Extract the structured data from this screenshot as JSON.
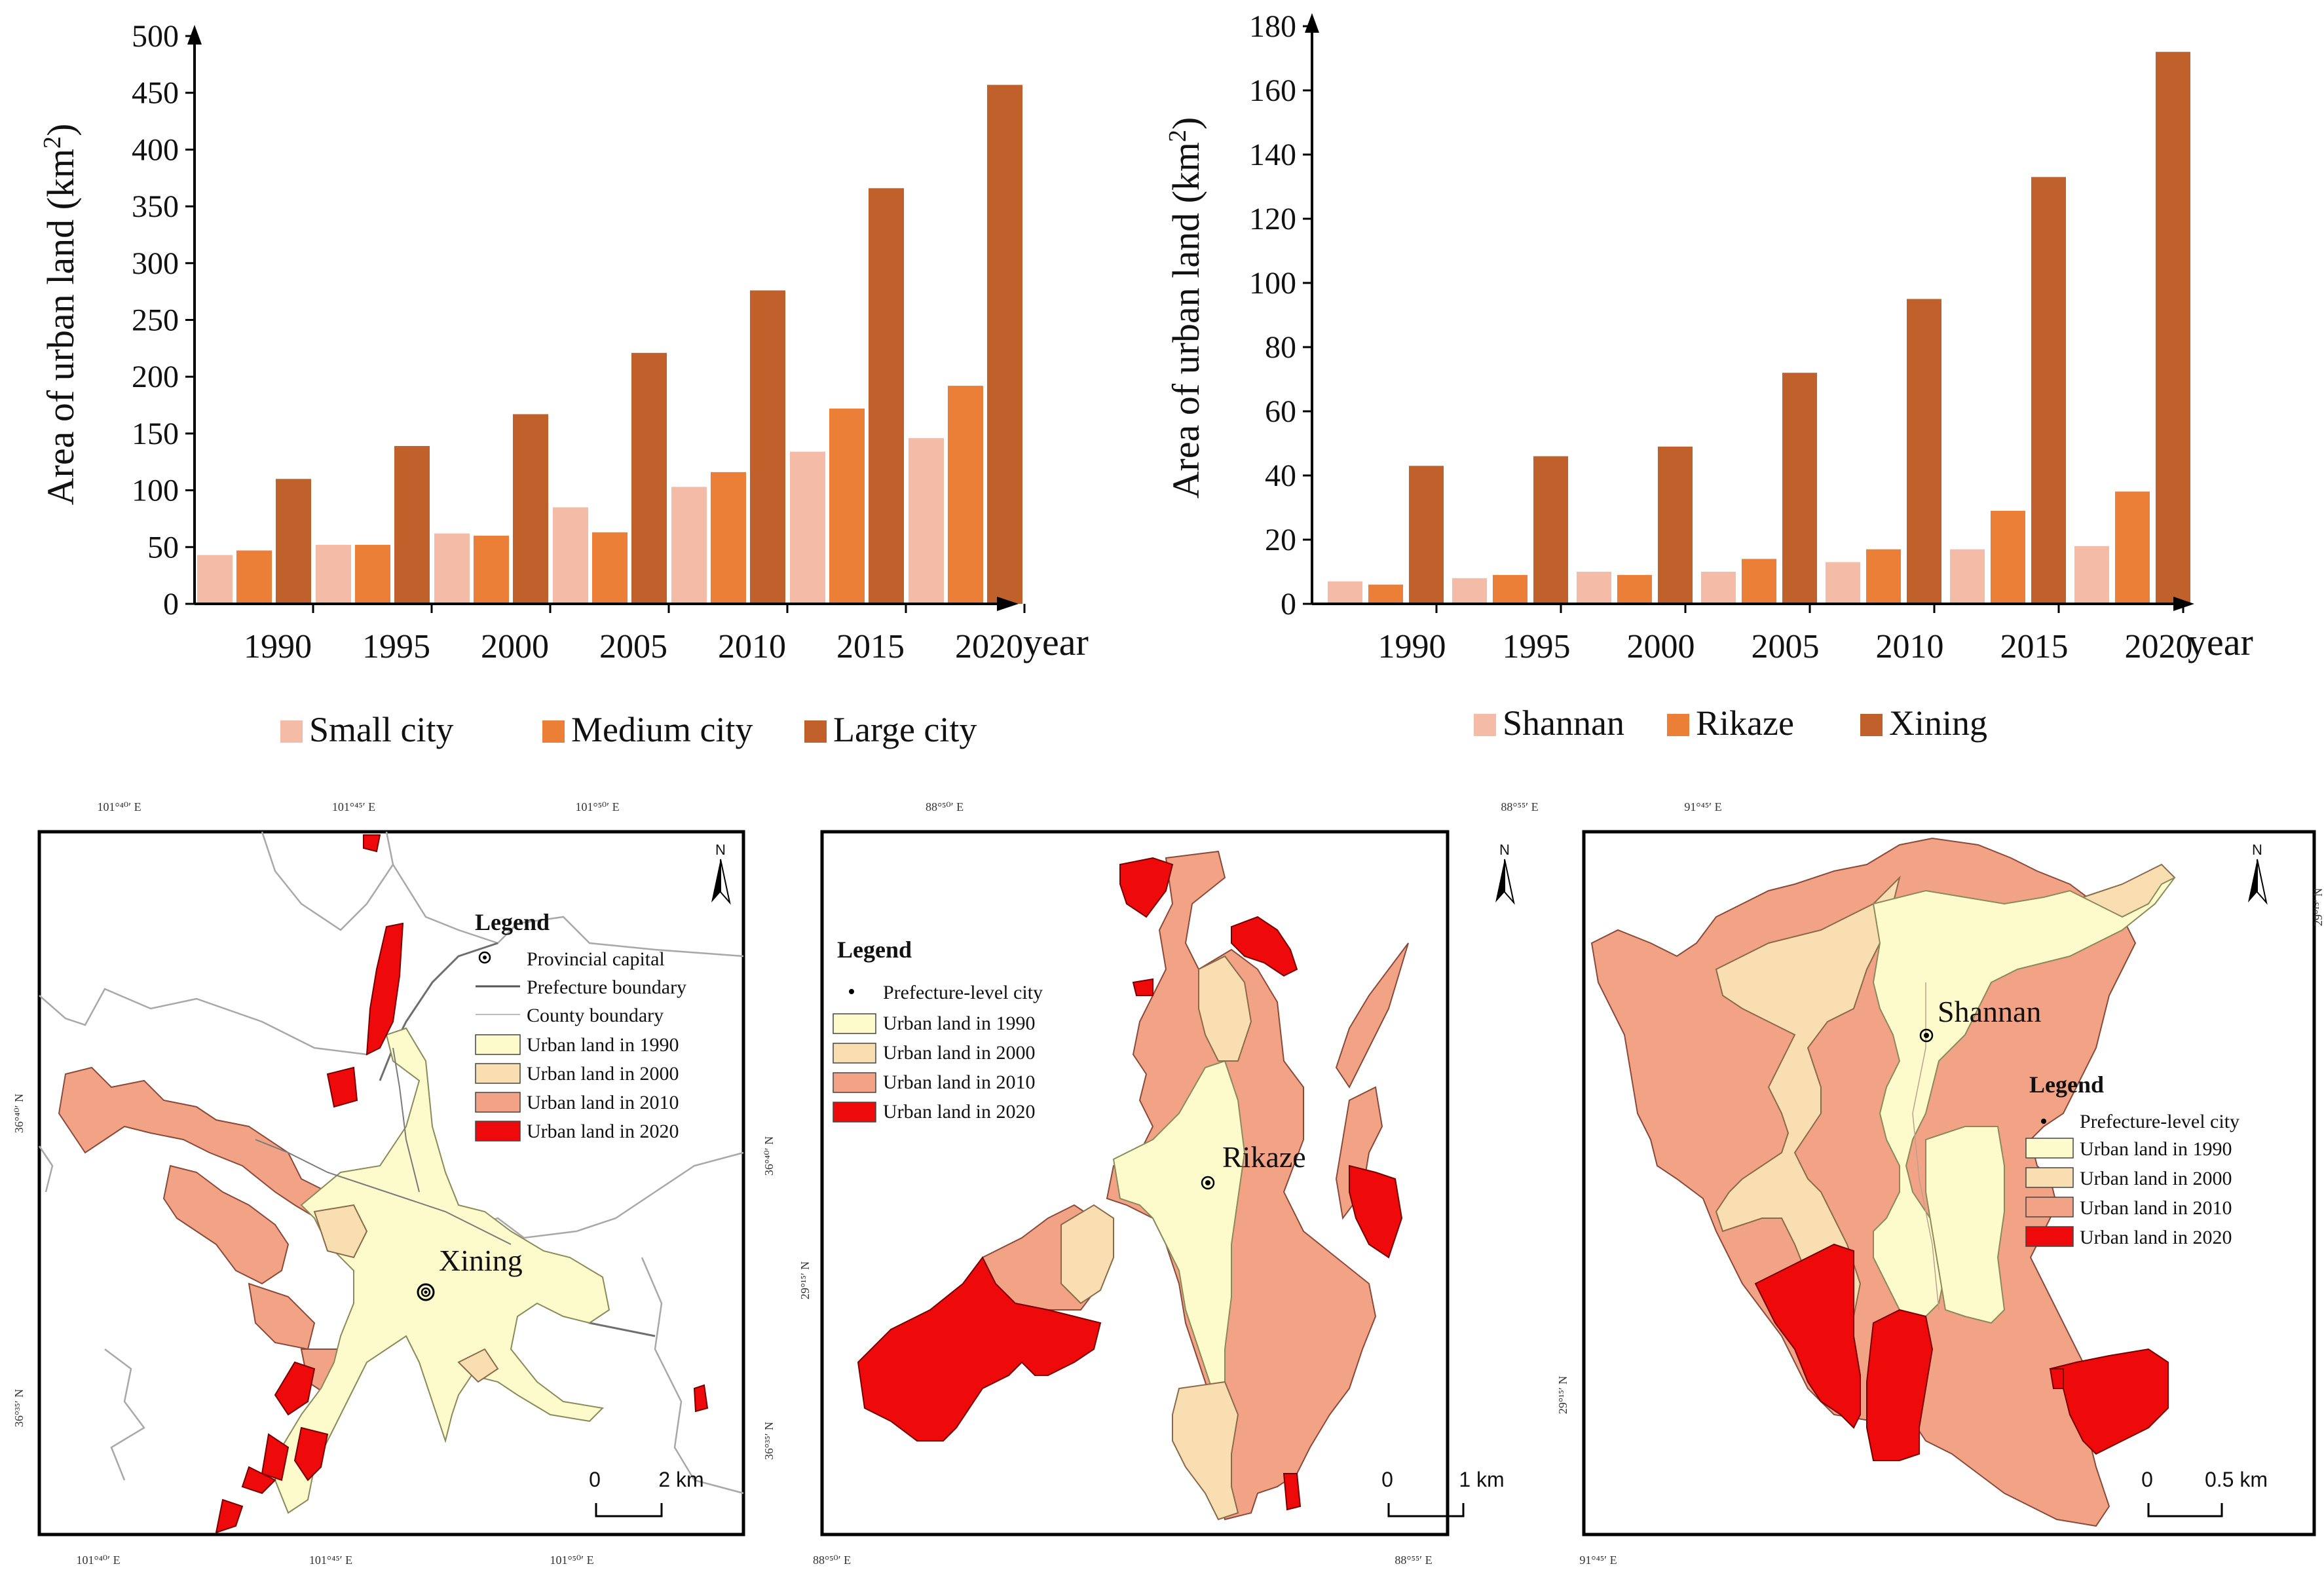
{
  "colors": {
    "small": "#F4BBA6",
    "medium": "#EB7F38",
    "large": "#C0602A",
    "u1990": "#FDFACB",
    "u2000": "#F8DEB0",
    "u2010": "#F2A385",
    "u2020": "#EE0A0A",
    "boundary": "#9a9a9a"
  },
  "chart_data": [
    {
      "type": "bar",
      "categories": [
        "1990",
        "1995",
        "2000",
        "2005",
        "2010",
        "2015",
        "2020"
      ],
      "series": [
        {
          "name": "Small city",
          "color_key": "small",
          "values": [
            43,
            52,
            62,
            85,
            103,
            134,
            146
          ]
        },
        {
          "name": "Medium city",
          "color_key": "medium",
          "values": [
            47,
            52,
            60,
            63,
            116,
            172,
            192
          ]
        },
        {
          "name": "Large city",
          "color_key": "large",
          "values": [
            110,
            139,
            167,
            221,
            276,
            366,
            457
          ]
        }
      ],
      "yticks": [
        "0",
        "50",
        "100",
        "150",
        "200",
        "250",
        "300",
        "350",
        "400",
        "450",
        "500"
      ],
      "ylim": [
        0,
        500
      ],
      "ylabel_main": "Area of urban land (km",
      "ylabel_sup": "2",
      "ylabel_close": ")",
      "xlabel": "year"
    },
    {
      "type": "bar",
      "categories": [
        "1990",
        "1995",
        "2000",
        "2005",
        "2010",
        "2015",
        "2020"
      ],
      "series": [
        {
          "name": "Shannan",
          "color_key": "small",
          "values": [
            7,
            8,
            10,
            10,
            13,
            17,
            18
          ]
        },
        {
          "name": "Rikaze",
          "color_key": "medium",
          "values": [
            6,
            9,
            9,
            14,
            17,
            29,
            35
          ]
        },
        {
          "name": "Xining",
          "color_key": "large",
          "values": [
            43,
            46,
            49,
            72,
            95,
            133,
            172
          ]
        }
      ],
      "yticks": [
        "0",
        "20",
        "40",
        "60",
        "80",
        "100",
        "120",
        "140",
        "160",
        "180"
      ],
      "ylim": [
        0,
        180
      ],
      "ylabel_main": "Area of urban land (km",
      "ylabel_sup": "2",
      "ylabel_close": ")",
      "xlabel": "year"
    }
  ],
  "maps": {
    "xining": {
      "city": "Xining",
      "legend_title": "Legend",
      "legend_items": [
        "Provincial capital",
        "Prefecture boundary",
        "County boundary",
        "Urban land in 1990",
        "Urban land in 2000",
        "Urban land in 2010",
        "Urban land in 2020"
      ],
      "scale": [
        "0",
        "2 km"
      ],
      "coords_top": [
        "101°⁴⁰′ E",
        "101°⁴⁵′ E",
        "101°⁵⁰′ E"
      ],
      "coords_bottom": [
        "101°⁴⁰′ E",
        "101°⁴⁵′ E",
        "101°⁵⁰′ E"
      ],
      "coords_left": [
        "36°⁴⁰′ N",
        "36°³⁵′ N"
      ],
      "coords_right": [
        "36°⁴⁰′ N",
        "36°³⁵′ N"
      ],
      "north": "N"
    },
    "rikaze": {
      "city": "Rikaze",
      "legend_title": "Legend",
      "legend_items": [
        "Prefecture-level city",
        "Urban land in 1990",
        "Urban land in 2000",
        "Urban land in 2010",
        "Urban land in 2020"
      ],
      "scale": [
        "0",
        "1 km"
      ],
      "coords_top": [
        "88°⁵⁰′ E",
        "88°⁵⁵′ E"
      ],
      "coords_bottom": [
        "88°⁵⁰′ E",
        "88°⁵⁵′ E"
      ],
      "coords_left": [
        "29°¹⁵′ N"
      ],
      "north": "N"
    },
    "shannan": {
      "city": "Shannan",
      "legend_title": "Legend",
      "legend_items": [
        "Prefecture-level city",
        "Urban land in 1990",
        "Urban land in 2000",
        "Urban land in 2010",
        "Urban land in 2020"
      ],
      "scale": [
        "0",
        "0.5 km"
      ],
      "coords_top": [
        "91°⁴⁵′ E"
      ],
      "coords_bottom": [
        "91°⁴⁵′ E"
      ],
      "coords_left": [
        "29°¹⁵′ N"
      ],
      "coords_right": [
        "29°¹⁵′ N"
      ],
      "north": "N"
    }
  }
}
